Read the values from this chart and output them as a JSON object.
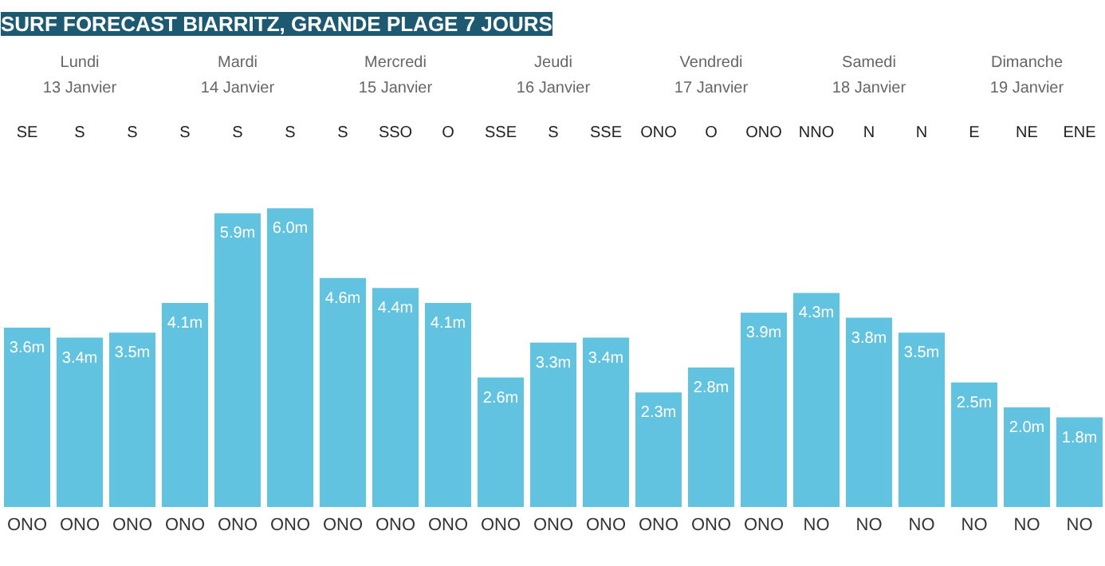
{
  "chart_data": {
    "type": "bar",
    "title": "SURF FORECAST BIARRITZ, GRANDE PLAGE 7 JOURS",
    "categories": [
      "ONO",
      "ONO",
      "ONO",
      "ONO",
      "ONO",
      "ONO",
      "ONO",
      "ONO",
      "ONO",
      "ONO",
      "ONO",
      "ONO",
      "ONO",
      "ONO",
      "ONO",
      "NO",
      "NO",
      "NO",
      "NO",
      "NO",
      "NO"
    ],
    "values": [
      3.6,
      3.4,
      3.5,
      4.1,
      5.9,
      6.0,
      4.6,
      4.4,
      4.1,
      2.6,
      3.3,
      3.4,
      2.3,
      2.8,
      3.9,
      4.3,
      3.8,
      3.5,
      2.5,
      2.0,
      1.8
    ],
    "value_labels": [
      "3.6m",
      "3.4m",
      "3.5m",
      "4.1m",
      "5.9m",
      "6.0m",
      "4.6m",
      "4.4m",
      "4.1m",
      "2.6m",
      "3.3m",
      "3.4m",
      "2.3m",
      "2.8m",
      "3.9m",
      "4.3m",
      "3.8m",
      "3.5m",
      "2.5m",
      "2.0m",
      "1.8m"
    ],
    "color": "#62c3e0",
    "annotations": [
      "Lundi",
      "13 Janvier",
      "Mardi",
      "14 Janvier",
      "Mercredi",
      "15 Janvier",
      "Jeudi",
      "16 Janvier",
      "Vendredi",
      "17 Janvier",
      "Samedi",
      "18 Janvier",
      "Dimanche",
      "19 Janvier",
      "SE",
      "S",
      "S",
      "S",
      "S",
      "S",
      "S",
      "SSO",
      "O",
      "SSE",
      "S",
      "SSE",
      "ONO",
      "O",
      "ONO",
      "NNO",
      "N",
      "N",
      "E",
      "NE",
      "ENE"
    ]
  }
}
